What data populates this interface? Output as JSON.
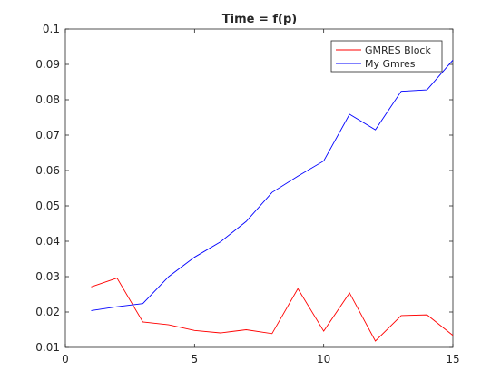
{
  "chart_data": {
    "type": "line",
    "title": "Time = f(p)",
    "xlabel": "",
    "ylabel": "",
    "xlim": [
      0,
      15
    ],
    "ylim": [
      0.01,
      0.1
    ],
    "xticks": [
      0,
      5,
      10,
      15
    ],
    "yticks": [
      0.01,
      0.02,
      0.03,
      0.04,
      0.05,
      0.06,
      0.07,
      0.08,
      0.09,
      0.1
    ],
    "xtick_labels": [
      "0",
      "5",
      "10",
      "15"
    ],
    "ytick_labels": [
      "0.01",
      "0.02",
      "0.03",
      "0.04",
      "0.05",
      "0.06",
      "0.07",
      "0.08",
      "0.09",
      "0.1"
    ],
    "grid": false,
    "legend_position": "top-right",
    "x": [
      1,
      2,
      3,
      4,
      5,
      6,
      7,
      8,
      9,
      10,
      11,
      12,
      13,
      14,
      15
    ],
    "series": [
      {
        "name": "GMRES Block",
        "color": "#ff0000",
        "values": [
          0.0271,
          0.0296,
          0.0172,
          0.0164,
          0.0148,
          0.0141,
          0.015,
          0.0139,
          0.0266,
          0.0146,
          0.0254,
          0.0118,
          0.019,
          0.0192,
          0.0134
        ]
      },
      {
        "name": "My Gmres",
        "color": "#0000ff",
        "values": [
          0.0204,
          0.0215,
          0.0224,
          0.03,
          0.0355,
          0.0398,
          0.0456,
          0.0538,
          0.0584,
          0.0627,
          0.0759,
          0.0715,
          0.0824,
          0.0828,
          0.0912
        ]
      }
    ]
  }
}
